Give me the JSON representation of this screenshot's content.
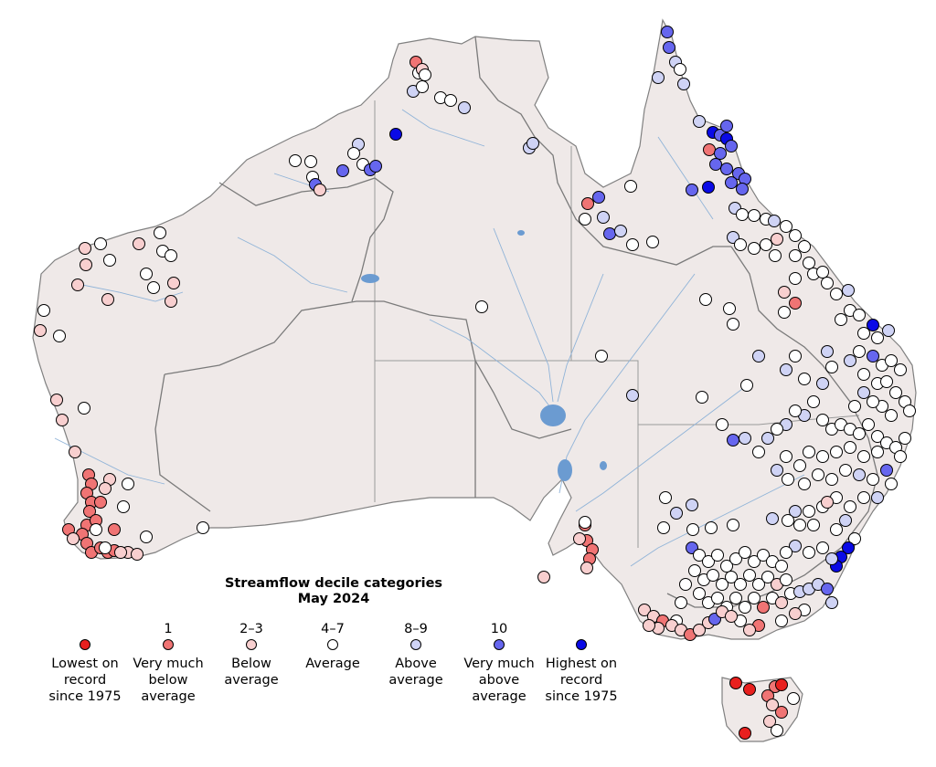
{
  "colors": {
    "land": "#efe9e8",
    "border": "#808080",
    "river": "#8fb3d8",
    "lake": "#6b9bd1",
    "lowest": "#e8201e",
    "very_below": "#f07474",
    "below": "#f8cfcf",
    "average": "#ffffff",
    "above": "#cfd3f5",
    "very_above": "#6666ee",
    "highest": "#0a0ae6"
  },
  "legend": {
    "title_line1": "Streamflow decile categories",
    "title_line2": "May 2024",
    "items": [
      {
        "key": "lowest",
        "number": "",
        "label": "Lowest on\nrecord\nsince 1975"
      },
      {
        "key": "very_below",
        "number": "1",
        "label": "Very much\nbelow\naverage"
      },
      {
        "key": "below",
        "number": "2–3",
        "label": "Below\naverage"
      },
      {
        "key": "average",
        "number": "4–7",
        "label": "Average"
      },
      {
        "key": "above",
        "number": "8–9",
        "label": "Above\naverage"
      },
      {
        "key": "very_above",
        "number": "10",
        "label": "Very much\nabove\naverage"
      },
      {
        "key": "highest",
        "number": "",
        "label": "Highest on\nrecord\nsince 1975"
      }
    ]
  }
}
